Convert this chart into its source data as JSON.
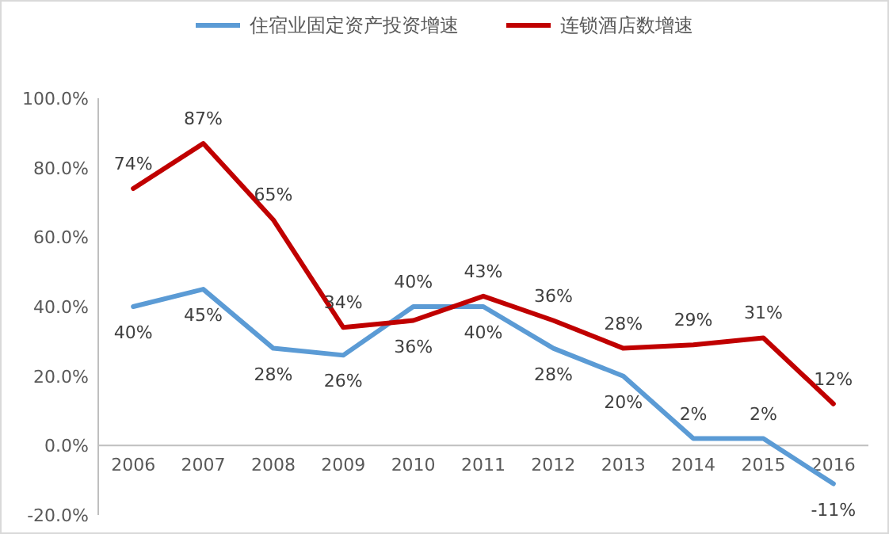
{
  "chart_data": {
    "type": "line",
    "categories": [
      "2006",
      "2007",
      "2008",
      "2009",
      "2010",
      "2011",
      "2012",
      "2013",
      "2014",
      "2015",
      "2016"
    ],
    "series": [
      {
        "name": "住宿业固定资产投资增速",
        "color": "#5b9bd5",
        "values": [
          40,
          45,
          28,
          26,
          40,
          40,
          28,
          20,
          2,
          2,
          -11
        ],
        "value_labels": [
          "40%",
          "45%",
          "28%",
          "26%",
          "40%",
          "40%",
          "28%",
          "20%",
          "2%",
          "2%",
          "-11%"
        ]
      },
      {
        "name": "连锁酒店数增速",
        "color": "#c00000",
        "values": [
          74,
          87,
          65,
          34,
          36,
          43,
          36,
          28,
          29,
          31,
          12
        ],
        "value_labels": [
          "74%",
          "87%",
          "65%",
          "34%",
          "36%",
          "43%",
          "36%",
          "28%",
          "29%",
          "31%",
          "12%"
        ]
      }
    ],
    "ylim": [
      -20,
      100
    ],
    "yticks": [
      {
        "value": -20,
        "label": "-20.0%"
      },
      {
        "value": 0,
        "label": "0.0%"
      },
      {
        "value": 20,
        "label": "20.0%"
      },
      {
        "value": 40,
        "label": "40.0%"
      },
      {
        "value": 60,
        "label": "60.0%"
      },
      {
        "value": 80,
        "label": "80.0%"
      },
      {
        "value": 100,
        "label": "100.0%"
      }
    ],
    "legend": "top"
  }
}
